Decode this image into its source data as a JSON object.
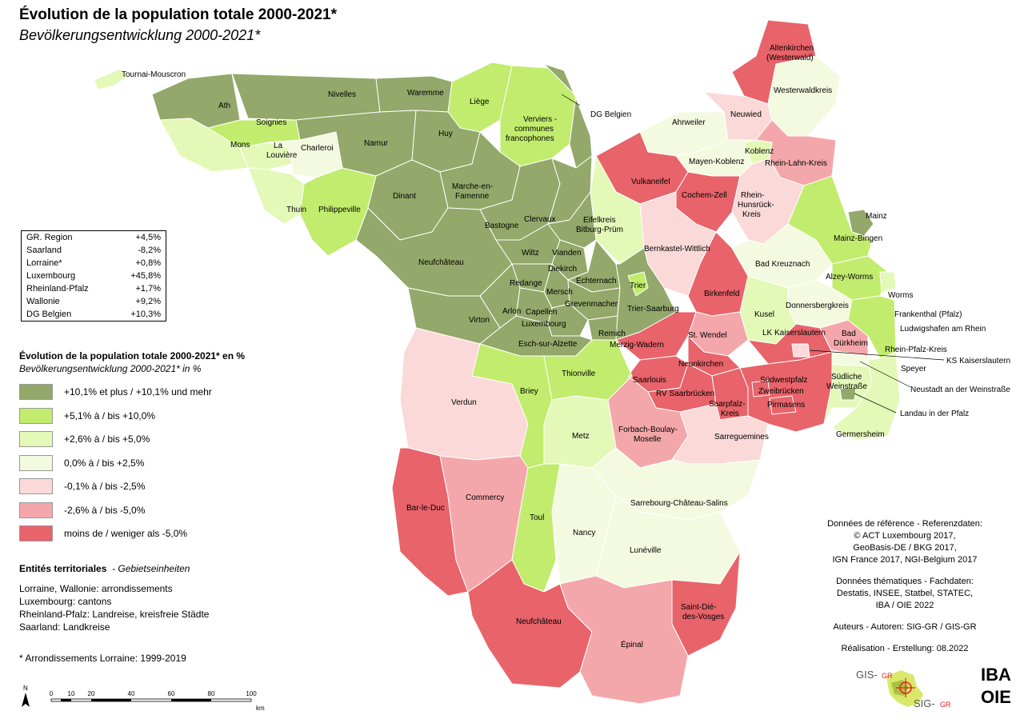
{
  "title": "Évolution de la population totale 2000-2021*",
  "subtitle": "Bevölkerungsentwicklung 2000-2021*",
  "colors": {
    "c1": "#93a86a",
    "c2": "#c2ec6d",
    "c3": "#e4f8b8",
    "c4": "#f3fae0",
    "c5": "#fbd9d9",
    "c6": "#f4a7aa",
    "c7": "#e8636a"
  },
  "summary": [
    {
      "name": "GR. Region",
      "value": "+4,5%"
    },
    {
      "name": "Saarland",
      "value": "-8,2%"
    },
    {
      "name": "Lorraine*",
      "value": "+0,8%"
    },
    {
      "name": "Luxembourg",
      "value": "+45,8%"
    },
    {
      "name": "Rheinland-Pfalz",
      "value": "+1,7%"
    },
    {
      "name": "Wallonie",
      "value": "+9,2%"
    },
    {
      "name": "DG Belgien",
      "value": "+10,3%"
    }
  ],
  "legend": {
    "title": "Évolution de la population totale 2000-2021* en %",
    "subtitle": "Bevölkerungsentwicklung 2000-2021* in %",
    "items": [
      {
        "label": "+10,1% et plus / +10,1% und mehr",
        "color": "#93a86a"
      },
      {
        "label": "+5,1% à / bis +10,0%",
        "color": "#c2ec6d"
      },
      {
        "label": "+2,6% à / bis +5,0%",
        "color": "#e4f8b8"
      },
      {
        "label": "0,0% à / bis +2,5%",
        "color": "#f3fae0"
      },
      {
        "label": "-0,1% à / bis -2,5%",
        "color": "#fbd9d9"
      },
      {
        "label": "-2,6% à / bis -5,0%",
        "color": "#f4a7aa"
      },
      {
        "label": "moins de / weniger als -5,0%",
        "color": "#e8636a"
      }
    ]
  },
  "entities": {
    "title": "Entités territoriales",
    "title_de": "- Gebietseinheiten",
    "lines": [
      "Lorraine, Wallonie: arrondissements",
      "Luxembourg: cantons",
      "Rheinland-Pfalz: Landreise, kreisfreie Städte",
      "Saarland: Landkreise"
    ]
  },
  "note": "* Arrondissements Lorraine: 1999-2019",
  "scale": {
    "ticks": [
      "0",
      "10",
      "20",
      "40",
      "60",
      "80",
      "100"
    ],
    "unit": "km",
    "north": "N"
  },
  "credits": {
    "reference": [
      "Données de référence - Referenzdaten:",
      "© ACT Luxembourg 2017,",
      "GeoBasis-DE / BKG 2017,",
      "IGN France 2017, NGI-Belgium 2017"
    ],
    "thematic": [
      "Données thématiques - Fachdaten:",
      "Destatis, INSEE, Statbel, STATEC,",
      "IBA / OIE 2022"
    ],
    "authors": "Auteurs - Autoren: SIG-GR / GIS-GR",
    "production": "Réalisation - Erstellung: 08.2022"
  },
  "logos": {
    "gis_top": "GIS-",
    "gis_top_suffix": "GR",
    "sig_bottom": "SIG-",
    "sig_bottom_suffix": "GR",
    "iba": "IBA",
    "oie": "OIE"
  },
  "regions": [
    {
      "name": "Tournai-Mouscron",
      "class": 3
    },
    {
      "name": "Ath",
      "class": 1
    },
    {
      "name": "Nivelles",
      "class": 1
    },
    {
      "name": "Waremme",
      "class": 1
    },
    {
      "name": "Liège",
      "class": 2
    },
    {
      "name": "Verviers - communes francophones",
      "class": 2
    },
    {
      "name": "DG Belgien",
      "class": 1
    },
    {
      "name": "Soignies",
      "class": 2
    },
    {
      "name": "Mons",
      "class": 3
    },
    {
      "name": "La Louvière",
      "class": 3
    },
    {
      "name": "Charleroi",
      "class": 4
    },
    {
      "name": "Namur",
      "class": 1
    },
    {
      "name": "Huy",
      "class": 1
    },
    {
      "name": "Thuin",
      "class": 3
    },
    {
      "name": "Philippeville",
      "class": 2
    },
    {
      "name": "Dinant",
      "class": 1
    },
    {
      "name": "Marche-en-Famenne",
      "class": 1
    },
    {
      "name": "Bastogne",
      "class": 1
    },
    {
      "name": "Neufchâteau (BE)",
      "class": 1
    },
    {
      "name": "Virton",
      "class": 1
    },
    {
      "name": "Arlon",
      "class": 1
    },
    {
      "name": "Clervaux",
      "class": 1
    },
    {
      "name": "Wiltz",
      "class": 1
    },
    {
      "name": "Vianden",
      "class": 1
    },
    {
      "name": "Diekirch",
      "class": 1
    },
    {
      "name": "Redange",
      "class": 1
    },
    {
      "name": "Mersch",
      "class": 1
    },
    {
      "name": "Echternach",
      "class": 1
    },
    {
      "name": "Grevenmacher",
      "class": 1
    },
    {
      "name": "Capellen",
      "class": 1
    },
    {
      "name": "Luxembourg",
      "class": 1
    },
    {
      "name": "Remich",
      "class": 1
    },
    {
      "name": "Esch-sur-Alzette",
      "class": 1
    },
    {
      "name": "Ahrweiler",
      "class": 4
    },
    {
      "name": "Altenkirchen (Westerwald)",
      "class": 7
    },
    {
      "name": "Westerwaldkreis",
      "class": 4
    },
    {
      "name": "Neuwied",
      "class": 5
    },
    {
      "name": "Koblenz",
      "class": 3
    },
    {
      "name": "Mayen-Koblenz",
      "class": 4
    },
    {
      "name": "Rhein-Lahn-Kreis",
      "class": 6
    },
    {
      "name": "Vulkaneifel",
      "class": 7
    },
    {
      "name": "Cochem-Zell",
      "class": 7
    },
    {
      "name": "Eifelkreis Bitburg-Prüm",
      "class": 3
    },
    {
      "name": "Rhein-Hunsrück-Kreis",
      "class": 5
    },
    {
      "name": "Bernkastel-Wittlich",
      "class": 5
    },
    {
      "name": "Trier",
      "class": 1
    },
    {
      "name": "Trier-Saarburg",
      "class": 2
    },
    {
      "name": "Birkenfeld",
      "class": 7
    },
    {
      "name": "Bad Kreuznach",
      "class": 4
    },
    {
      "name": "Mainz",
      "class": 1
    },
    {
      "name": "Mainz-Bingen",
      "class": 2
    },
    {
      "name": "Alzey-Worms",
      "class": 2
    },
    {
      "name": "Worms",
      "class": 3
    },
    {
      "name": "Frankenthal (Pfalz)",
      "class": 4
    },
    {
      "name": "Ludwigshafen am Rhein",
      "class": 3
    },
    {
      "name": "Donnersbergkreis",
      "class": 6
    },
    {
      "name": "Kusel",
      "class": 7
    },
    {
      "name": "St. Wendel",
      "class": 7
    },
    {
      "name": "Merzig-Wadern",
      "class": 5
    },
    {
      "name": "LK Kaiserslautern",
      "class": 6
    },
    {
      "name": "KS Kaiserslautern",
      "class": 5
    },
    {
      "name": "Bad Dürkheim",
      "class": 5
    },
    {
      "name": "Rhein-Pfalz-Kreis",
      "class": 2
    },
    {
      "name": "Speyer",
      "class": 3
    },
    {
      "name": "Neunkirchen",
      "class": 7
    },
    {
      "name": "Saarlouis",
      "class": 7
    },
    {
      "name": "RV Saarbrücken",
      "class": 7
    },
    {
      "name": "Saarpfalz-Kreis",
      "class": 7
    },
    {
      "name": "Südwestpfalz",
      "class": 7
    },
    {
      "name": "Zweibrücken",
      "class": 7
    },
    {
      "name": "Pirmasens",
      "class": 7
    },
    {
      "name": "Südliche Weinstraße",
      "class": 3
    },
    {
      "name": "Neustadt an der Weinstraße",
      "class": 4
    },
    {
      "name": "Landau in der Pfalz",
      "class": 1
    },
    {
      "name": "Germersheim",
      "class": 3
    },
    {
      "name": "Verdun",
      "class": 5
    },
    {
      "name": "Briey",
      "class": 2
    },
    {
      "name": "Thionville",
      "class": 2
    },
    {
      "name": "Metz",
      "class": 3
    },
    {
      "name": "Forbach-Boulay-Moselle",
      "class": 6
    },
    {
      "name": "Sarreguemines",
      "class": 5
    },
    {
      "name": "Bar-le-Duc",
      "class": 7
    },
    {
      "name": "Commercy",
      "class": 6
    },
    {
      "name": "Toul",
      "class": 2
    },
    {
      "name": "Nancy",
      "class": 4
    },
    {
      "name": "Sarrebourg-Château-Salins",
      "class": 4
    },
    {
      "name": "Lunéville",
      "class": 4
    },
    {
      "name": "Neufchâteau (FR)",
      "class": 7
    },
    {
      "name": "Saint-Dié-des-Vosges",
      "class": 7
    },
    {
      "name": "Épinal",
      "class": 6
    }
  ],
  "map_labels": [
    "Tournai-Mouscron",
    "Ath",
    "Nivelles",
    "Waremme",
    "Liège",
    "Verviers -",
    "communes",
    "francophones",
    "DG Belgien",
    "Soignies",
    "Mons",
    "La",
    "Louvière",
    "Charleroi",
    "Namur",
    "Huy",
    "Thuin",
    "Philippeville",
    "Dinant",
    "Marche-en-",
    "Famenne",
    "Bastogne",
    "Neufchâteau",
    "Virton",
    "Arlon",
    "Clervaux",
    "Wiltz",
    "Vianden",
    "Diekirch",
    "Redange",
    "Mersch",
    "Echternach",
    "Grevenmacher",
    "Capellen",
    "Luxembourg",
    "Remich",
    "Esch-sur-Alzette",
    "Ahrweiler",
    "Altenkirchen",
    "(Westerwald)",
    "Westerwaldkreis",
    "Neuwied",
    "Koblenz",
    "Mayen-Koblenz",
    "Rhein-Lahn-Kreis",
    "Vulkaneifel",
    "Cochem-Zell",
    "Eifelkreis",
    "Bitburg-Prüm",
    "Rhein-",
    "Hunsrück-",
    "Kreis",
    "Bernkastel-Wittlich",
    "Trier",
    "Trier-Saarburg",
    "Birkenfeld",
    "Bad Kreuznach",
    "Mainz",
    "Mainz-Bingen",
    "Alzey-Worms",
    "Worms",
    "Frankenthal (Pfalz)",
    "Ludwigshafen am Rhein",
    "Donnersbergkreis",
    "Kusel",
    "St. Wendel",
    "Merzig-Wadern",
    "LK Kaiserslautern",
    "KS Kaiserslautern",
    "Bad",
    "Dürkheim",
    "Rhein-Pfalz-Kreis",
    "Speyer",
    "Neunkirchen",
    "Saarlouis",
    "RV Saarbrücken",
    "Saarpfalz-",
    "Kreis",
    "Südwestpfalz",
    "Zweibrücken",
    "Pirmasens",
    "Südliche",
    "Weinstraße",
    "Neustadt an der Weinstraße",
    "Landau in der Pfalz",
    "Germersheim",
    "Verdun",
    "Briey",
    "Thionville",
    "Metz",
    "Forbach-Boulay-",
    "Moselle",
    "Sarreguemines",
    "Bar-le-Duc",
    "Commercy",
    "Toul",
    "Nancy",
    "Sarrebourg-Château-Salins",
    "Lunéville",
    "Neufchâteau",
    "Saint-Dié-",
    "des-Vosges",
    "Épinal"
  ]
}
